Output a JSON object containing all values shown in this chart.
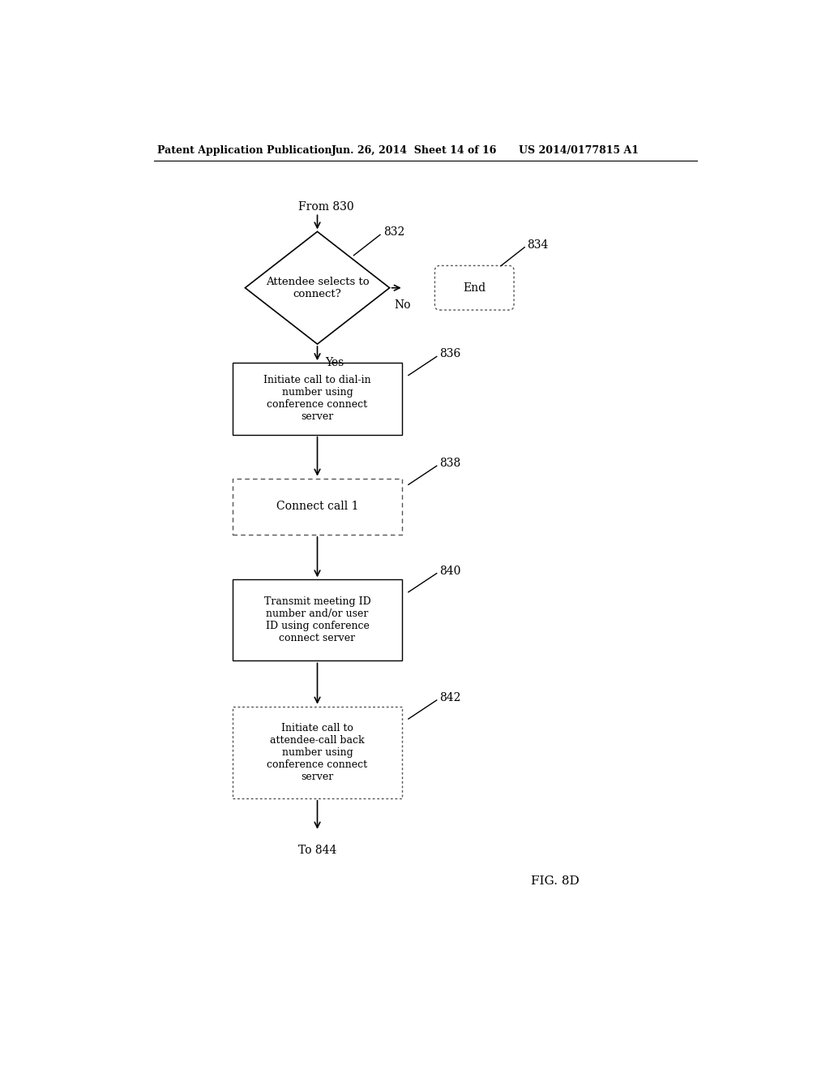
{
  "header_left": "Patent Application Publication",
  "header_mid": "Jun. 26, 2014  Sheet 14 of 16",
  "header_right": "US 2014/0177815 A1",
  "from_label": "From 830",
  "to_label": "To 844",
  "fig_label": "FIG. 8D",
  "diamond_label": "Attendee selects to\nconnect?",
  "diamond_num": "832",
  "end_label": "End",
  "end_num": "834",
  "no_label": "No",
  "yes_label": "Yes",
  "box1_label": "Initiate call to dial-in\nnumber using\nconference connect\nserver",
  "box1_num": "836",
  "box2_label": "Connect call 1",
  "box2_num": "838",
  "box3_label": "Transmit meeting ID\nnumber and/or user\nID using conference\nconnect server",
  "box3_num": "840",
  "box4_label": "Initiate call to\nattendee-call back\nnumber using\nconference connect\nserver",
  "box4_num": "842",
  "bg_color": "#ffffff",
  "text_color": "#000000"
}
